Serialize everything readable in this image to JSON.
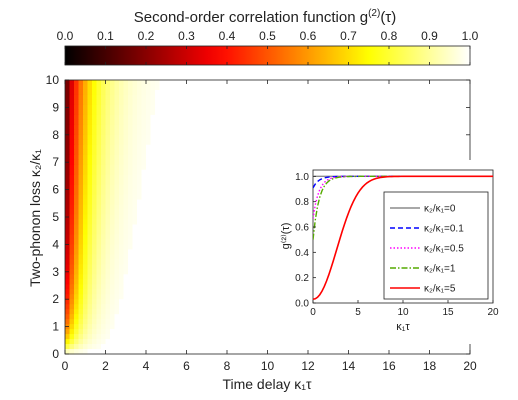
{
  "chart_data": [
    {
      "type": "heatmap",
      "title": "",
      "colorbar": {
        "title": "Second-order correlation function g",
        "title_sup": "(2)",
        "title_tail": "(τ)",
        "ticks": [
          "0.0",
          "0.1",
          "0.2",
          "0.3",
          "0.4",
          "0.5",
          "0.6",
          "0.7",
          "0.8",
          "0.9",
          "1.0"
        ],
        "range": [
          0,
          1
        ],
        "colormap": "hot"
      },
      "xlabel": "Time delay κ₁τ",
      "ylabel": "Two-phonon loss κ₂/κ₁",
      "xlim": [
        0,
        20
      ],
      "ylim": [
        0,
        10
      ],
      "xticks": [
        "0",
        "2",
        "4",
        "6",
        "8",
        "10",
        "12",
        "14",
        "16",
        "18",
        "20"
      ],
      "yticks": [
        "0",
        "1",
        "2",
        "3",
        "4",
        "5",
        "6",
        "7",
        "8",
        "9",
        "10"
      ],
      "grid": false
    },
    {
      "type": "line",
      "title": "",
      "xlabel": "κ₁τ",
      "ylabel": "g⁽²⁾(τ)",
      "xlim": [
        0,
        20
      ],
      "ylim": [
        0,
        1.05
      ],
      "xticks": [
        "0",
        "5",
        "10",
        "15",
        "20"
      ],
      "yticks": [
        "0.0",
        "0.2",
        "0.4",
        "0.6",
        "0.8",
        "1.0"
      ],
      "legend_position": "center-right",
      "series": [
        {
          "name": "κ₂/κ₁=0",
          "kappa_ratio": 0,
          "color": "#8c8c8c",
          "dash": "solid",
          "x": [
            0,
            20
          ],
          "y": [
            1.0,
            1.0
          ]
        },
        {
          "name": "κ₂/κ₁=0.1",
          "kappa_ratio": 0.1,
          "color": "#0000ff",
          "dash": "dashed",
          "x": [
            0,
            1,
            2,
            3,
            4,
            5,
            6,
            8,
            10,
            15,
            20
          ],
          "y": [
            0.83,
            0.91,
            0.95,
            0.975,
            0.988,
            0.994,
            0.997,
            1.0,
            1.0,
            1.0,
            1.0
          ]
        },
        {
          "name": "κ₂/κ₁=0.5",
          "kappa_ratio": 0.5,
          "color": "#ff00ff",
          "dash": "dotted",
          "x": [
            0,
            1,
            2,
            3,
            4,
            5,
            6,
            8,
            10,
            15,
            20
          ],
          "y": [
            0.45,
            0.67,
            0.82,
            0.91,
            0.955,
            0.978,
            0.99,
            0.998,
            1.0,
            1.0,
            1.0
          ]
        },
        {
          "name": "κ₂/κ₁=1",
          "kappa_ratio": 1,
          "color": "#55aa00",
          "dash": "dashdot",
          "x": [
            0,
            1,
            2,
            3,
            4,
            5,
            6,
            8,
            10,
            15,
            20
          ],
          "y": [
            0.3,
            0.55,
            0.74,
            0.86,
            0.93,
            0.965,
            0.983,
            0.996,
            1.0,
            1.0,
            1.0
          ]
        },
        {
          "name": "κ₂/κ₁=5",
          "kappa_ratio": 5,
          "color": "#ff0000",
          "dash": "solid",
          "x": [
            0,
            1,
            2,
            3,
            4,
            5,
            6,
            7,
            8,
            10,
            15,
            20
          ],
          "y": [
            0.03,
            0.23,
            0.48,
            0.68,
            0.82,
            0.905,
            0.95,
            0.975,
            0.988,
            0.998,
            1.0,
            1.0
          ]
        }
      ]
    }
  ]
}
